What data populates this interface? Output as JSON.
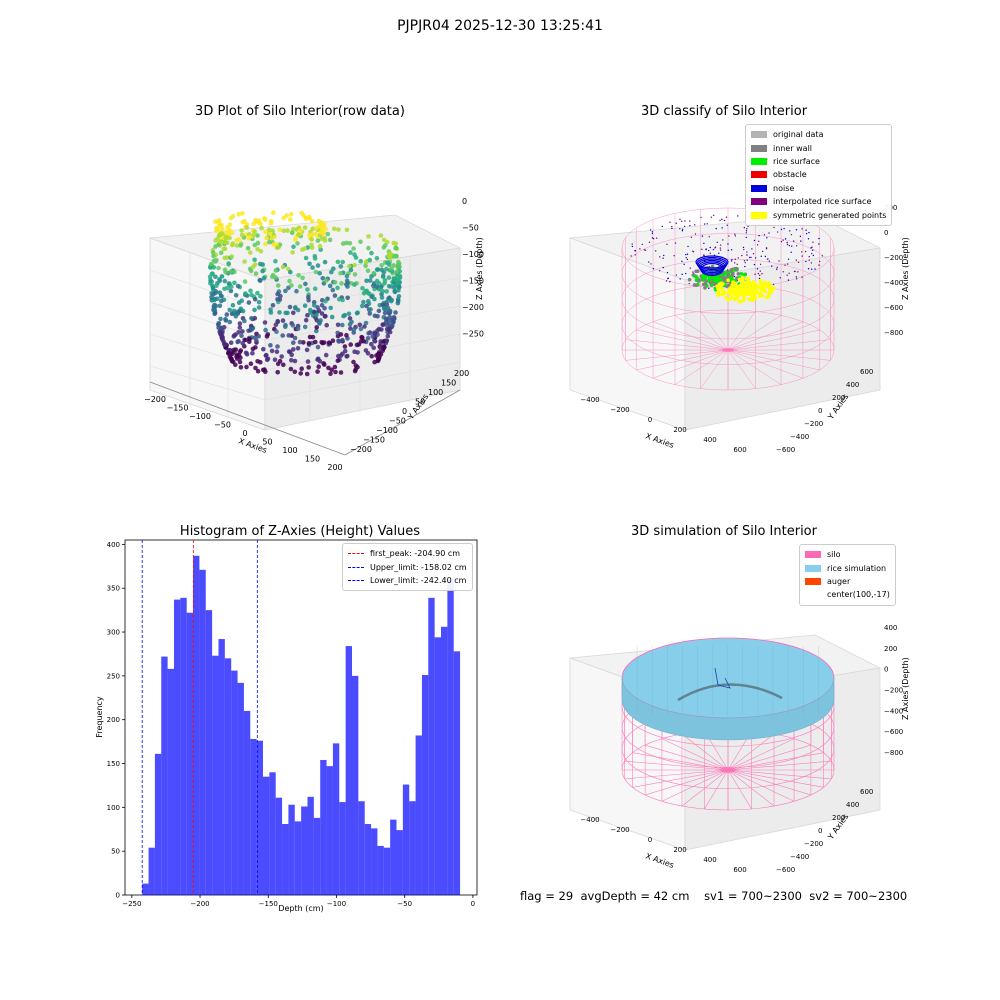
{
  "figure": {
    "title": "PJPJR04 2025-12-30 13:25:41"
  },
  "panels": {
    "raw": {
      "title": "3D Plot of Silo Interior(row data)",
      "x_axis_label": "X Axies",
      "y_axis_label": "Y Axies",
      "z_axis_label": "Z Axies (Depth)",
      "x_ticks": [
        "−200",
        "−150",
        "−100",
        "−50",
        "0",
        "50",
        "100",
        "150",
        "200"
      ],
      "y_ticks": [
        "−200",
        "−150",
        "−100",
        "−50",
        "0",
        "50",
        "100",
        "150",
        "200"
      ],
      "z_ticks": [
        "0",
        "−50",
        "−100",
        "−150",
        "−200",
        "−250"
      ],
      "colormap": "viridis"
    },
    "classify": {
      "title": "3D classify of Silo Interior",
      "x_axis_label": "X Axies",
      "y_axis_label": "Y Axies",
      "z_axis_label": "Z Axies (Depth)",
      "x_ticks": [
        "−400",
        "−200",
        "0",
        "200",
        "400",
        "600"
      ],
      "y_ticks": [
        "−600",
        "−400",
        "−200",
        "0",
        "200",
        "400",
        "600"
      ],
      "z_ticks": [
        "−800",
        "−600",
        "−400",
        "−200",
        "0",
        "200"
      ],
      "legend": [
        {
          "label": "original data",
          "color": "#b3b3b3"
        },
        {
          "label": "inner wall",
          "color": "#808080"
        },
        {
          "label": "rice surface",
          "color": "#00ee00"
        },
        {
          "label": "obstacle",
          "color": "#ee0000"
        },
        {
          "label": "noise",
          "color": "#0000dd"
        },
        {
          "label": "interpolated rice surface",
          "color": "#800080"
        },
        {
          "label": "symmetric generated points",
          "color": "#ffff00"
        }
      ]
    },
    "histogram": {
      "title": "Histogram of Z-Axies (Height) Values",
      "legend": [
        {
          "label": "first_peak: -204.90 cm",
          "color": "#ff0000"
        },
        {
          "label": "Upper_limit: -158.02 cm",
          "color": "#0000ff"
        },
        {
          "label": "Lower_limit: -242.40 cm",
          "color": "#0000ff"
        }
      ]
    },
    "simulation": {
      "title": "3D simulation of Silo Interior",
      "x_axis_label": "X Axies",
      "y_axis_label": "Y Axies",
      "z_axis_label": "Z Axies (Depth)",
      "x_ticks": [
        "−400",
        "−200",
        "0",
        "200",
        "400",
        "600"
      ],
      "y_ticks": [
        "−600",
        "−400",
        "−200",
        "0",
        "200",
        "400",
        "600"
      ],
      "z_ticks": [
        "−800",
        "−600",
        "−400",
        "−200",
        "0",
        "200",
        "400"
      ],
      "legend": [
        {
          "label": "silo",
          "color": "#ff69b4"
        },
        {
          "label": "rice simulation",
          "color": "#87ceeb"
        },
        {
          "label": "auger",
          "color": "#ff4500"
        },
        {
          "label": "center(100,-17)",
          "color": ""
        }
      ]
    }
  },
  "footer": {
    "flag": "flag = 29",
    "avg_depth": "avgDepth = 42 cm",
    "sv1": "sv1 = 700~2300",
    "sv2": "sv2 = 700~2300"
  },
  "chart_data": [
    {
      "type": "scatter",
      "title": "3D Plot of Silo Interior(row data)",
      "xlabel": "X Axies",
      "ylabel": "Y Axies",
      "zlabel": "Z Axies (Depth)",
      "xlim": [
        -200,
        200
      ],
      "ylim": [
        -200,
        200
      ],
      "zlim": [
        -250,
        0
      ],
      "colormap": "viridis",
      "grid": true
    },
    {
      "type": "scatter",
      "title": "3D classify of Silo Interior",
      "xlabel": "X Axies",
      "ylabel": "Y Axies",
      "zlabel": "Z Axies (Depth)",
      "xlim": [
        -400,
        600
      ],
      "ylim": [
        -600,
        600
      ],
      "zlim": [
        -800,
        200
      ],
      "legend_position": "top-right",
      "grid": true
    },
    {
      "type": "bar",
      "title": "Histogram of Z-Axies (Height) Values",
      "xlabel": "Depth (cm)",
      "ylabel": "Frequency",
      "xlim": [
        -255,
        3
      ],
      "ylim": [
        0,
        405
      ],
      "xticks": [
        -250,
        -200,
        -150,
        -100,
        -50,
        0
      ],
      "yticks": [
        0,
        50,
        100,
        150,
        200,
        250,
        300,
        350,
        400
      ],
      "bin_start": -242.4,
      "bin_width": 4.66,
      "values": [
        13,
        54,
        161,
        272,
        258,
        337,
        339,
        322,
        387,
        371,
        325,
        273,
        292,
        270,
        256,
        242,
        210,
        178,
        176,
        135,
        140,
        111,
        81,
        103,
        84,
        101,
        112,
        88,
        154,
        147,
        173,
        106,
        284,
        250,
        107,
        81,
        76,
        56,
        54,
        86,
        74,
        126,
        107,
        182,
        251,
        339,
        294,
        306,
        361,
        278
      ],
      "bar_color": "#0000ff",
      "vlines": [
        {
          "label": "first_peak: -204.90 cm",
          "x": -204.9,
          "color": "#ff0000"
        },
        {
          "label": "Upper_limit: -158.02 cm",
          "x": -158.02,
          "color": "#0000ff"
        },
        {
          "label": "Lower_limit: -242.40 cm",
          "x": -242.4,
          "color": "#0000ff"
        }
      ],
      "legend_position": "top-right"
    },
    {
      "type": "scatter",
      "title": "3D simulation of Silo Interior",
      "xlabel": "X Axies",
      "ylabel": "Y Axies",
      "zlabel": "Z Axies (Depth)",
      "xlim": [
        -400,
        600
      ],
      "ylim": [
        -600,
        600
      ],
      "zlim": [
        -800,
        400
      ],
      "legend_position": "top-right",
      "grid": true
    }
  ]
}
